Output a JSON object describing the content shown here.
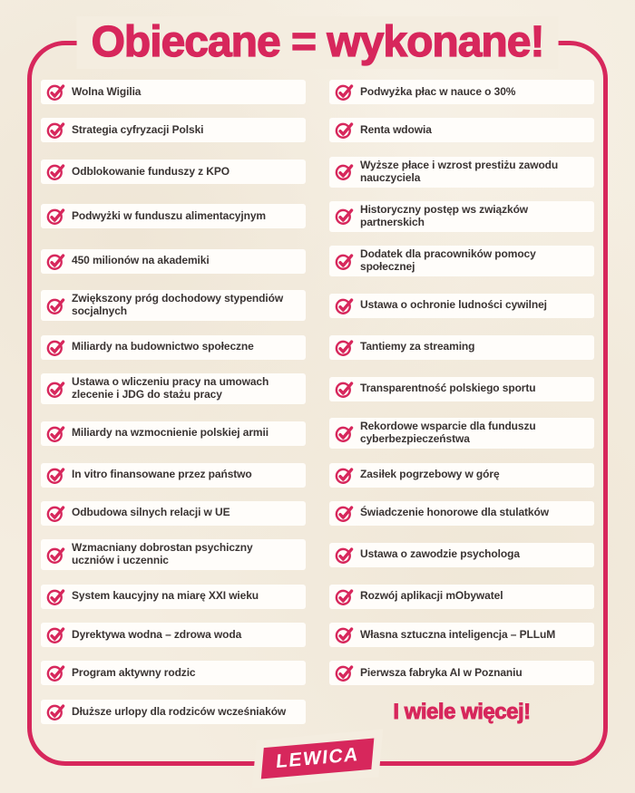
{
  "title": "Obiecane = wykonane!",
  "colors": {
    "accent_pink": "#d7275c",
    "background_cream": "#f4ede0",
    "card_white": "#fffdfa",
    "item_text": "#3a3433",
    "logo_text_color": "#ffffff"
  },
  "checklist": {
    "item_icon": "check-circle-icon",
    "left_column": [
      "Wolna Wigilia",
      "Strategia cyfryzacji Polski",
      "Odblokowanie funduszy z KPO",
      "Podwyżki w funduszu alimentacyjnym",
      "450 milionów na akademiki",
      "Zwiększony próg dochodowy stypendiów\nsocjalnych",
      "Miliardy na budownictwo społeczne",
      "Ustawa o wliczeniu pracy na umowach\nzlecenie i JDG do stażu pracy",
      "Miliardy na wzmocnienie polskiej armii",
      "In vitro finansowane przez państwo",
      "Odbudowa silnych relacji w UE",
      "Wzmacniany dobrostan psychiczny\nuczniów i uczennic",
      "System kaucyjny na miarę XXI wieku",
      "Dyrektywa wodna – zdrowa woda",
      "Program aktywny rodzic",
      "Dłuższe urlopy dla rodziców wcześniaków"
    ],
    "right_column": [
      "Podwyżka płac w nauce o 30%",
      "Renta wdowia",
      "Wyższe płace i wzrost prestiżu zawodu\nnauczyciela",
      "Historyczny postęp ws związków\npartnerskich",
      "Dodatek dla pracowników pomocy\nspołecznej",
      "Ustawa o ochronie ludności cywilnej",
      "Tantiemy za streaming",
      "Transparentność polskiego sportu",
      "Rekordowe wsparcie dla funduszu\ncyberbezpieczeństwa",
      "Zasiłek pogrzebowy w górę",
      "Świadczenie honorowe dla stulatków",
      "Ustawa o zawodzie psychologa",
      "Rozwój aplikacji mObywatel",
      "Własna sztuczna inteligencja – PLLuM",
      "Pierwsza fabryka AI w Poznaniu"
    ]
  },
  "footer": {
    "more_text": "I wiele więcej!",
    "logo_text": "LEWICA"
  }
}
